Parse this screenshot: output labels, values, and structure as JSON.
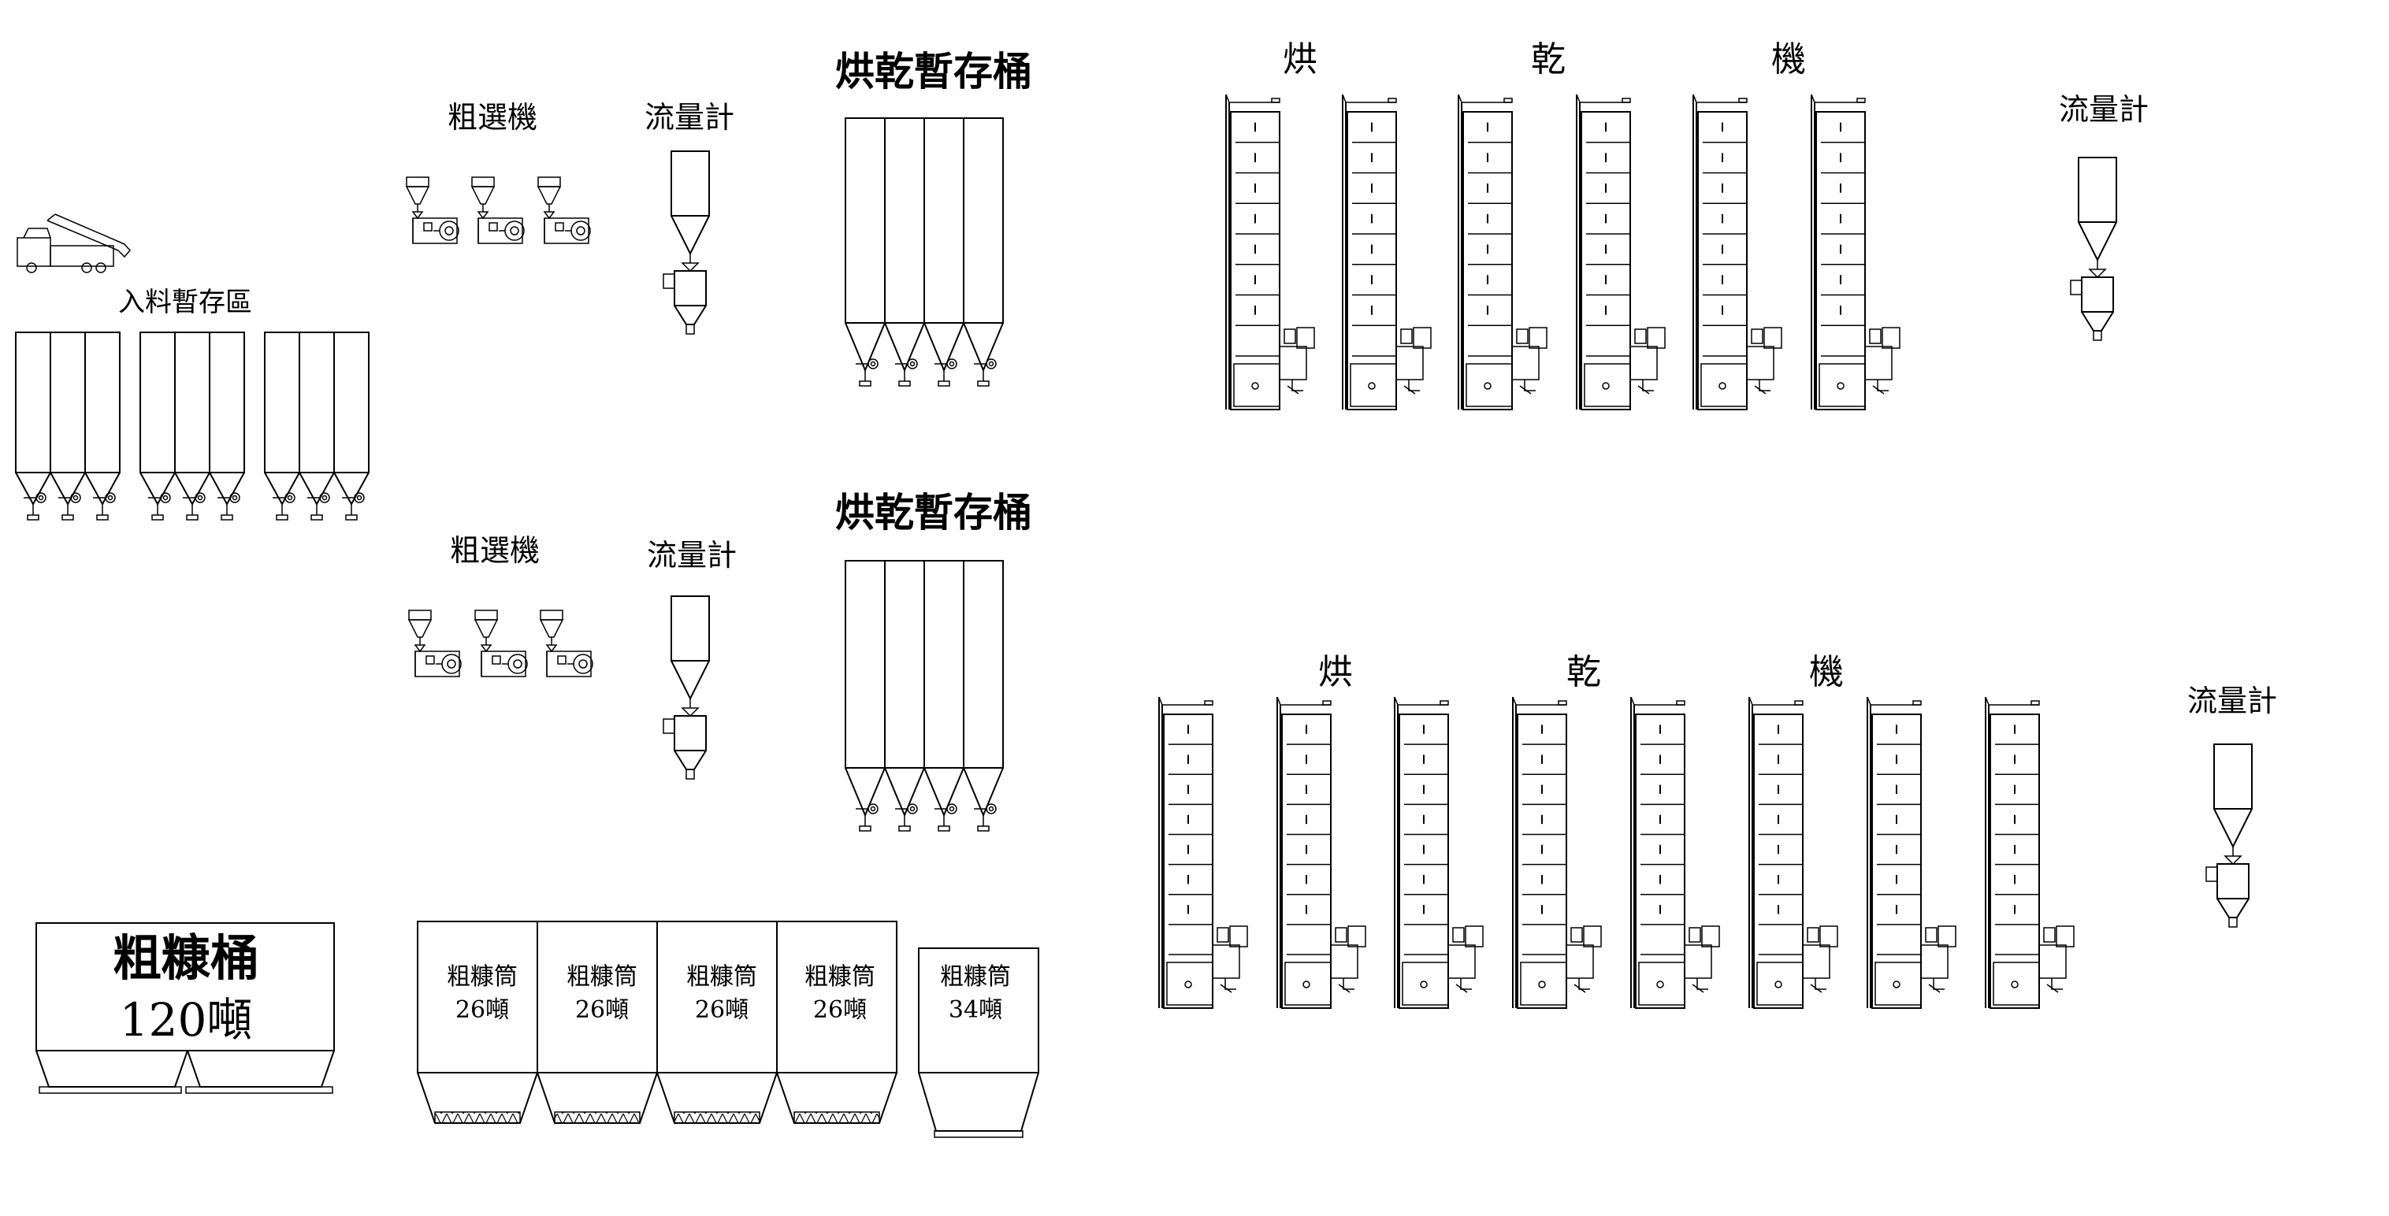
{
  "labels": {
    "intake_area": "入料暫存區",
    "coarse_sorter_1": "粗選機",
    "flow_meter_1": "流量計",
    "drying_bin_1": "烘乾暫存桶",
    "dryer_1_char1": "烘",
    "dryer_1_char2": "乾",
    "dryer_1_char3": "機",
    "flow_meter_2": "流量計",
    "coarse_sorter_2": "粗選機",
    "flow_meter_3": "流量計",
    "drying_bin_2": "烘乾暫存桶",
    "dryer_2_char1": "烘",
    "dryer_2_char2": "乾",
    "dryer_2_char3": "機",
    "flow_meter_4": "流量計",
    "brown_rice_bin_title": "粗糠桶",
    "brown_rice_bin_capacity": "120噸",
    "silo_1_name": "粗糠筒",
    "silo_1_capacity": "26噸",
    "silo_2_name": "粗糠筒",
    "silo_2_capacity": "26噸",
    "silo_3_name": "粗糠筒",
    "silo_3_capacity": "26噸",
    "silo_4_name": "粗糠筒",
    "silo_4_capacity": "26噸",
    "silo_5_name": "粗糠筒",
    "silo_5_capacity": "34噸"
  }
}
